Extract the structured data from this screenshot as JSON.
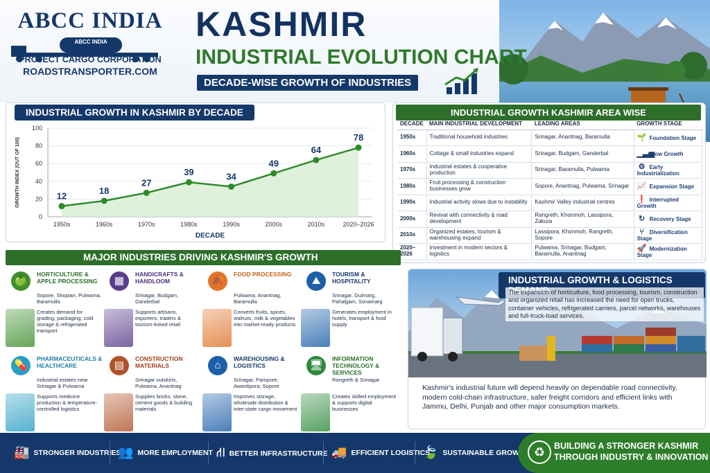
{
  "brand": {
    "name": "ABCC INDIA",
    "truck_label": "ABCC INDIA",
    "tagline": "PROJECT CARGO CORPORATION",
    "website": "ROADSTRANSPORTER.COM"
  },
  "header": {
    "title": "KASHMIR",
    "subtitle": "INDUSTRIAL EVOLUTION CHART",
    "tagline": "DECADE-WISE GROWTH OF INDUSTRIES"
  },
  "colors": {
    "navy": "#15386a",
    "green": "#2d6e2a",
    "line": "#2f8a2a",
    "area_fill": "#d9efd3"
  },
  "chart_data": {
    "type": "area",
    "title": "INDUSTRIAL GROWTH IN KASHMIR BY DECADE",
    "xlabel": "DECADE",
    "ylabel": "GROWTH INDEX (OUT OF 100)",
    "categories": [
      "1950s",
      "1960s",
      "1970s",
      "1980s",
      "1990s",
      "2000s",
      "2010s",
      "2020–2026"
    ],
    "values": [
      12,
      18,
      27,
      39,
      34,
      49,
      64,
      78
    ],
    "data_labels": [
      "12",
      "18",
      "27",
      "39",
      "34",
      "49",
      "64",
      "78"
    ],
    "ylim": [
      0,
      100
    ],
    "yticks": [
      "0",
      "20",
      "40",
      "60",
      "80",
      "100"
    ],
    "grid": true
  },
  "area_table": {
    "title": "INDUSTRIAL GROWTH KASHMIR AREA WISE",
    "headers": [
      "DECADE",
      "MAIN INDUSTRIAL DEVELOPMENT",
      "LEADING AREAS",
      "GROWTH STAGE"
    ],
    "rows": [
      {
        "decade": "1950s",
        "development": "Traditional household industries",
        "areas": "Srinagar, Anantnag, Baramulla",
        "stage": "Foundation Stage",
        "icon": "sprout-icon",
        "glyph": "🌱"
      },
      {
        "decade": "1960s",
        "development": "Cottage & small industries expand",
        "areas": "Srinagar, Budgam, Ganderbal",
        "stage": "Slow Growth",
        "icon": "bar-chart-icon",
        "glyph": "▁▃▅"
      },
      {
        "decade": "1970s",
        "development": "Industrial estates & cooperative production",
        "areas": "Srinagar, Baramulla, Pulwama",
        "stage": "Early Industrialization",
        "icon": "gear-icon",
        "glyph": "⚙"
      },
      {
        "decade": "1980s",
        "development": "Fruit processing & construction businesses grow",
        "areas": "Sopore, Anantnag, Pulwama, Srinagar",
        "stage": "Expansion Stage",
        "icon": "trend-up-icon",
        "glyph": "📈"
      },
      {
        "decade": "1990s",
        "development": "Industrial activity slows due to instability",
        "areas": "Kashmir Valley industrial centres",
        "stage": "Interrupted Growth",
        "icon": "alert-icon",
        "glyph": "❗"
      },
      {
        "decade": "2000s",
        "development": "Revival with connectivity & road development",
        "areas": "Rangreth, Khonmoh, Lassipora, Zakura",
        "stage": "Recovery Stage",
        "icon": "refresh-icon",
        "glyph": "↻"
      },
      {
        "decade": "2010s",
        "development": "Organized estates, tourism & warehousing expand",
        "areas": "Lassipora, Khonmoh, Rangreth, Sopore",
        "stage": "Diversification Stage",
        "icon": "branch-icon",
        "glyph": "⑂"
      },
      {
        "decade": "2020–2026",
        "development": "Investment in modern sectors & logistics",
        "areas": "Pulwama, Srinagar, Budgam, Baramulla, Anantnag",
        "stage": "Modernization Stage",
        "icon": "rocket-icon",
        "glyph": "🚀"
      }
    ]
  },
  "industries": {
    "title": "MAJOR INDUSTRIES DRIVING KASHMIR'S GROWTH",
    "items": [
      {
        "title": "HORTICULTURE & APPLE PROCESSING",
        "areas": "Sopore, Shopian, Pulwama, Baramulla",
        "desc": "Creates demand for grading, packaging, cold storage & refrigerated transport",
        "icon": "apple-icon",
        "glyph": "🍏",
        "color": "#3f8f2e",
        "title_color": "#2d6e2a"
      },
      {
        "title": "HANDICRAFTS & HANDLOOM",
        "areas": "Srinagar, Budgam, Ganderbal",
        "desc": "Supports artisans, exporters, traders & tourism-linked retail",
        "icon": "loom-icon",
        "glyph": "▦",
        "color": "#5a3d8a",
        "title_color": "#4b2f7a"
      },
      {
        "title": "FOOD PROCESSING",
        "areas": "Pulwama, Anantnag, Baramulla",
        "desc": "Converts fruits, spices, walnuts, milk & vegetables into market-ready products",
        "icon": "leaf-icon",
        "glyph": "🍂",
        "color": "#e0752a",
        "title_color": "#c75f16"
      },
      {
        "title": "TOURISM & HOSPITALITY",
        "areas": "Srinagar, Gulmarg, Pahalgam, Sonamarg",
        "desc": "Generates employment in hotels, transport & food supply",
        "icon": "mountain-icon",
        "glyph": "⛰",
        "color": "#1d5fa8",
        "title_color": "#15386a"
      },
      {
        "title": "PHARMACEUTICALS & HEALTHCARE",
        "areas": "Industrial estates near Srinagar & Pulwama",
        "desc": "Supports medicine production & temperature-controlled logistics",
        "icon": "capsule-icon",
        "glyph": "💊",
        "color": "#2a9fc4",
        "title_color": "#1d7fa5"
      },
      {
        "title": "CONSTRUCTION MATERIALS",
        "areas": "Srinagar outskirts, Pulwama, Anantnag",
        "desc": "Supplies bricks, stone, cement goods & building materials",
        "icon": "bricks-icon",
        "glyph": "▤",
        "color": "#b0532a",
        "title_color": "#a0401c"
      },
      {
        "title": "WAREHOUSING & LOGISTICS",
        "areas": "Srinagar, Pampore, Awantipora, Sopore",
        "desc": "Improves storage, wholesale distribution & inter-state cargo movement",
        "icon": "warehouse-icon",
        "glyph": "⌂",
        "color": "#1d5fa8",
        "title_color": "#15386a"
      },
      {
        "title": "INFORMATION TECHNOLOGY & SERVICES",
        "areas": "Rangreth & Srinagar",
        "desc": "Creates skilled employment & supports digital businesses",
        "icon": "monitor-icon",
        "glyph": "🖥",
        "color": "#2d8a3a",
        "title_color": "#2d6e2a"
      }
    ]
  },
  "logistics": {
    "title": "INDUSTRIAL GROWTH & LOGISTICS DEMAND",
    "text1": "The expansion of horticulture, food processing, tourism, construction and organized retail has increased the need for open trucks, container vehicles, refrigerated carriers, parcel networks, warehouses and full-truck-load services.",
    "text2": "Kashmir's industrial future will depend heavily on dependable road connectivity, modern cold-chain infrastructure, safer freight corridors and efficient links with Jammu, Delhi, Punjab and other major consumption markets."
  },
  "footer": {
    "items": [
      {
        "label": "STRONGER INDUSTRIES",
        "icon": "factory-icon",
        "glyph": "🏭"
      },
      {
        "label": "MORE EMPLOYMENT",
        "icon": "people-icon",
        "glyph": "👥"
      },
      {
        "label": "BETTER INFRASTRUCTURE",
        "icon": "road-icon",
        "glyph": "⛙"
      },
      {
        "label": "EFFICIENT LOGISTICS",
        "icon": "truck-icon",
        "glyph": "🚚"
      },
      {
        "label": "SUSTAINABLE GROWTH",
        "icon": "leaf-icon",
        "glyph": "🍃"
      }
    ],
    "cta_line1": "BUILDING A STRONGER KASHMIR",
    "cta_line2": "THROUGH INDUSTRY & INNOVATION"
  }
}
